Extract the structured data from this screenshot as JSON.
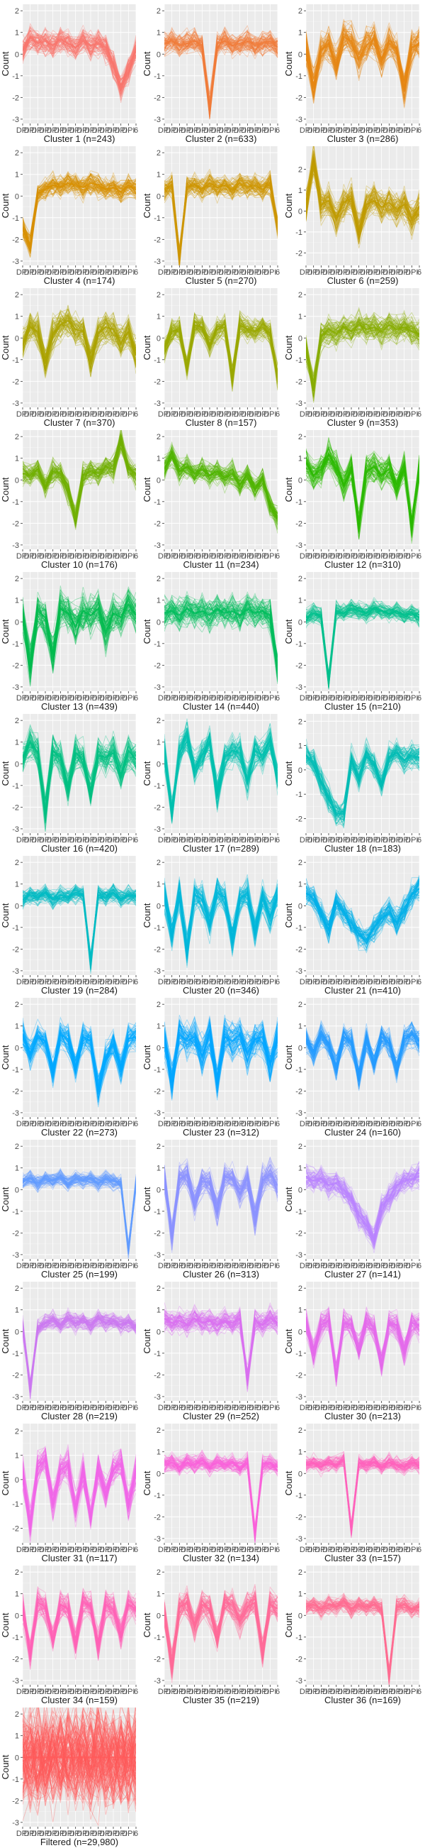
{
  "chart_data": {
    "type": "line",
    "layout": "small multiples, 3 columns",
    "ylabel": "Count",
    "x_tick_labels": [
      "DPI",
      "DPI",
      "DPI",
      "DPI",
      "DPI",
      "DPI",
      "DPI",
      "DPI",
      "DPI",
      "DPI",
      "DPI",
      "DPI",
      "DPI",
      "DPI",
      "DPI",
      "6"
    ],
    "y_ticks": [
      -3,
      -2,
      -1,
      0,
      1,
      2
    ],
    "background": "#ebebeb",
    "grid": true,
    "panels": [
      {
        "title": "Cluster 1 (n=243)",
        "color": "#f8766d",
        "ylim": [
          -3.2,
          2.3
        ],
        "center": [
          0.2,
          0.8,
          0.5,
          0.6,
          0.4,
          0.7,
          0.5,
          0.3,
          0.6,
          0.4,
          0.5,
          0.3,
          -0.5,
          -1.6,
          -0.8,
          0.2
        ],
        "spread": 0.5
      },
      {
        "title": "Cluster 2 (n=633)",
        "color": "#f07c3a",
        "ylim": [
          -3.2,
          2.3
        ],
        "center": [
          0.5,
          0.6,
          0.4,
          0.5,
          0.6,
          0.4,
          -2.5,
          0.5,
          0.6,
          0.4,
          0.5,
          0.6,
          0.4,
          0.5,
          0.6,
          0.3
        ],
        "spread": 0.45
      },
      {
        "title": "Cluster 3 (n=286)",
        "color": "#e68613",
        "ylim": [
          -3.2,
          2.3
        ],
        "center": [
          0.3,
          -1.5,
          0.2,
          0.5,
          -0.5,
          0.8,
          0.6,
          -0.2,
          0.4,
          0.7,
          -0.3,
          0.5,
          0.2,
          -1.6,
          0.3,
          0.5
        ],
        "spread": 0.65
      },
      {
        "title": "Cluster 4 (n=174)",
        "color": "#d89000",
        "ylim": [
          -3.2,
          2.3
        ],
        "center": [
          -1.5,
          -2.3,
          0.1,
          0.3,
          0.5,
          0.4,
          0.6,
          0.5,
          0.4,
          0.6,
          0.5,
          0.3,
          0.4,
          0.2,
          0.5,
          0.3
        ],
        "spread": 0.45
      },
      {
        "title": "Cluster 5 (n=270)",
        "color": "#cd9600",
        "ylim": [
          -3.2,
          2.3
        ],
        "center": [
          0.3,
          0.5,
          -2.8,
          0.4,
          0.5,
          0.3,
          0.6,
          0.4,
          0.5,
          0.3,
          0.6,
          0.4,
          0.5,
          0.3,
          0.6,
          -1.4
        ],
        "spread": 0.45
      },
      {
        "title": "Cluster 6 (n=259)",
        "color": "#bf9b00",
        "ylim": [
          -2.6,
          3.1
        ],
        "center": [
          0.2,
          2.3,
          0.3,
          0.5,
          -0.3,
          0.4,
          0.6,
          -1.0,
          0.3,
          0.5,
          0.2,
          0.4,
          0.1,
          0.3,
          -0.4,
          0.2
        ],
        "spread": 0.65
      },
      {
        "title": "Cluster 7 (n=370)",
        "color": "#aba300",
        "ylim": [
          -3.2,
          2.3
        ],
        "center": [
          -0.3,
          0.5,
          0.3,
          -1.2,
          0.2,
          0.6,
          0.8,
          0.4,
          0.3,
          -1.0,
          0.2,
          0.5,
          0.4,
          -0.2,
          0.3,
          -0.8
        ],
        "spread": 0.6
      },
      {
        "title": "Cluster 8 (n=157)",
        "color": "#9aa800",
        "ylim": [
          -3.2,
          2.3
        ],
        "center": [
          -0.5,
          0.3,
          0.4,
          -1.4,
          0.6,
          0.5,
          -0.3,
          0.4,
          0.5,
          -1.8,
          0.6,
          0.4,
          0.3,
          0.5,
          0.2,
          -1.8
        ],
        "spread": 0.45
      },
      {
        "title": "Cluster 9 (n=353)",
        "color": "#87ac00",
        "ylim": [
          -3.2,
          2.3
        ],
        "center": [
          -0.5,
          -2.3,
          0.1,
          0.4,
          0.2,
          0.5,
          0.3,
          0.6,
          0.4,
          0.5,
          0.3,
          0.6,
          0.4,
          0.5,
          0.3,
          0.2
        ],
        "spread": 0.55
      },
      {
        "title": "Cluster 10 (n=176)",
        "color": "#70b000",
        "ylim": [
          -3.2,
          2.3
        ],
        "center": [
          0.3,
          0.2,
          0.5,
          -0.3,
          0.4,
          0.3,
          -0.5,
          -1.8,
          0.2,
          0.4,
          0.3,
          0.6,
          0.5,
          1.8,
          0.6,
          0.2
        ],
        "spread": 0.45
      },
      {
        "title": "Cluster 11 (n=234)",
        "color": "#4fb400",
        "ylim": [
          -3.2,
          2.3
        ],
        "center": [
          0.5,
          1.2,
          0.4,
          0.6,
          0.3,
          0.5,
          0.2,
          0.4,
          0.1,
          0.3,
          -0.2,
          0.2,
          -0.4,
          0.1,
          -1.2,
          -1.8
        ],
        "spread": 0.45
      },
      {
        "title": "Cluster 12 (n=310)",
        "color": "#2ab900",
        "ylim": [
          -3.2,
          2.3
        ],
        "center": [
          0.8,
          0.2,
          0.5,
          1.2,
          0.6,
          -0.2,
          0.5,
          -2.0,
          0.4,
          0.6,
          0.2,
          0.5,
          -0.3,
          0.6,
          -2.2,
          0.5
        ],
        "spread": 0.6
      },
      {
        "title": "Cluster 13 (n=439)",
        "color": "#00bb4e",
        "ylim": [
          -3.2,
          2.3
        ],
        "center": [
          0.3,
          -2.0,
          0.5,
          0.2,
          -1.5,
          0.6,
          0.4,
          -0.2,
          0.5,
          0.3,
          0.6,
          -0.5,
          0.4,
          0.2,
          0.8,
          0.3
        ],
        "spread": 0.75
      },
      {
        "title": "Cluster 14 (n=440)",
        "color": "#00bd5c",
        "ylim": [
          -3.2,
          2.3
        ],
        "center": [
          0.4,
          0.5,
          0.3,
          0.6,
          0.4,
          0.5,
          0.3,
          0.6,
          0.4,
          0.5,
          0.3,
          0.6,
          0.4,
          0.5,
          0.3,
          -2.2
        ],
        "spread": 0.6
      },
      {
        "title": "Cluster 15 (n=210)",
        "color": "#00c08d",
        "ylim": [
          -3.2,
          2.3
        ],
        "center": [
          0.2,
          0.4,
          0.3,
          -2.7,
          0.5,
          0.4,
          0.6,
          0.5,
          0.4,
          0.6,
          0.5,
          0.4,
          0.5,
          0.3,
          0.4,
          0.2
        ],
        "spread": 0.35
      },
      {
        "title": "Cluster 16 (n=420)",
        "color": "#00bf82",
        "ylim": [
          -3.2,
          2.3
        ],
        "center": [
          0.3,
          1.0,
          0.5,
          -2.3,
          0.6,
          0.3,
          -1.2,
          0.5,
          0.2,
          -1.3,
          0.4,
          0.3,
          0.5,
          -0.5,
          0.6,
          0.2
        ],
        "spread": 0.65
      },
      {
        "title": "Cluster 17 (n=289)",
        "color": "#00c0af",
        "ylim": [
          -3.2,
          2.3
        ],
        "center": [
          0.6,
          -2.2,
          0.5,
          1.3,
          -0.3,
          0.4,
          1.0,
          -1.4,
          0.3,
          0.6,
          0.5,
          -0.8,
          0.6,
          0.4,
          1.1,
          -0.6
        ],
        "spread": 0.6
      },
      {
        "title": "Cluster 18 (n=183)",
        "color": "#00bcb5",
        "ylim": [
          -2.6,
          2.3
        ],
        "center": [
          0.6,
          0.3,
          -0.5,
          -1.2,
          -1.8,
          -1.8,
          0.4,
          -0.3,
          0.6,
          0.2,
          -0.6,
          0.5,
          0.7,
          0.4,
          0.6,
          0.5
        ],
        "spread": 0.45
      },
      {
        "title": "Cluster 19 (n=284)",
        "color": "#00bbc3",
        "ylim": [
          -3.2,
          2.3
        ],
        "center": [
          0.3,
          0.5,
          0.4,
          0.6,
          0.3,
          0.5,
          0.4,
          0.6,
          0.5,
          -2.6,
          0.5,
          0.4,
          0.6,
          0.3,
          0.5,
          0.4
        ],
        "spread": 0.35
      },
      {
        "title": "Cluster 20 (n=346)",
        "color": "#00b7d9",
        "ylim": [
          -3.2,
          2.3
        ],
        "center": [
          0.5,
          -1.4,
          0.6,
          -2.1,
          0.5,
          0.3,
          -0.8,
          0.6,
          0.4,
          -1.5,
          0.3,
          0.6,
          -1.2,
          0.4,
          -0.5,
          0.5
        ],
        "spread": 0.6
      },
      {
        "title": "Cluster 21 (n=410)",
        "color": "#00b0e9",
        "ylim": [
          -3.2,
          2.3
        ],
        "center": [
          0.6,
          0.3,
          -0.4,
          -1.1,
          0.2,
          -0.3,
          -0.8,
          -1.3,
          -1.6,
          -1.0,
          -0.6,
          -0.3,
          -0.8,
          -0.2,
          0.5,
          0.8
        ],
        "spread": 0.5
      },
      {
        "title": "Cluster 22 (n=273)",
        "color": "#00a9ff",
        "ylim": [
          -3.2,
          2.3
        ],
        "center": [
          0.6,
          -0.3,
          0.5,
          0.3,
          -1.1,
          0.6,
          0.4,
          -0.9,
          0.5,
          0.3,
          -1.9,
          -0.5,
          0.2,
          -1.0,
          0.4,
          0.5
        ],
        "spread": 0.55
      },
      {
        "title": "Cluster 23 (n=312)",
        "color": "#03a6ff",
        "ylim": [
          -3.2,
          2.3
        ],
        "center": [
          0.4,
          -1.5,
          0.6,
          0.3,
          0.5,
          -0.4,
          0.6,
          -1.6,
          0.5,
          0.3,
          0.6,
          -0.2,
          0.4,
          0.5,
          -0.8,
          0.4
        ],
        "spread": 0.7
      },
      {
        "title": "Cluster 24 (n=160)",
        "color": "#269cff",
        "ylim": [
          -3.2,
          2.3
        ],
        "center": [
          0.4,
          -0.3,
          0.6,
          0.2,
          -0.9,
          0.5,
          0.3,
          -1.4,
          0.4,
          -0.7,
          0.5,
          0.2,
          -1.0,
          0.4,
          0.6,
          0.3
        ],
        "spread": 0.5
      },
      {
        "title": "Cluster 25 (n=199)",
        "color": "#619cff",
        "ylim": [
          -3.2,
          2.3
        ],
        "center": [
          0.4,
          0.5,
          0.3,
          0.5,
          0.4,
          0.6,
          0.3,
          0.5,
          0.4,
          0.5,
          0.3,
          0.5,
          0.4,
          0.3,
          -2.8,
          0.3
        ],
        "spread": 0.3
      },
      {
        "title": "Cluster 26 (n=313)",
        "color": "#8b93ff",
        "ylim": [
          -3.2,
          2.3
        ],
        "center": [
          0.6,
          -2.1,
          0.5,
          0.7,
          -0.6,
          0.4,
          0.3,
          -1.0,
          0.6,
          0.5,
          -0.2,
          0.5,
          -1.3,
          0.4,
          0.7,
          0.2
        ],
        "spread": 0.55
      },
      {
        "title": "Cluster 27 (n=141)",
        "color": "#b983ff",
        "ylim": [
          -3.2,
          2.3
        ],
        "center": [
          0.6,
          0.4,
          0.5,
          0.2,
          0.3,
          0.0,
          -0.4,
          -1.2,
          -1.6,
          -2.3,
          -0.8,
          -0.4,
          0.2,
          0.4,
          0.5,
          0.6
        ],
        "spread": 0.5
      },
      {
        "title": "Cluster 28 (n=219)",
        "color": "#cc79f1",
        "ylim": [
          -3.2,
          2.3
        ],
        "center": [
          0.2,
          -2.6,
          0.1,
          0.4,
          0.5,
          0.3,
          0.6,
          0.4,
          0.5,
          0.3,
          0.6,
          0.4,
          0.5,
          0.3,
          0.4,
          0.2
        ],
        "spread": 0.35
      },
      {
        "title": "Cluster 29 (n=252)",
        "color": "#d96ff0",
        "ylim": [
          -3.2,
          2.3
        ],
        "center": [
          0.6,
          0.4,
          0.5,
          0.3,
          0.6,
          0.4,
          0.5,
          0.3,
          0.5,
          0.4,
          0.6,
          -2.2,
          0.5,
          0.3,
          0.6,
          0.4
        ],
        "spread": 0.45
      },
      {
        "title": "Cluster 30 (n=213)",
        "color": "#e46bec",
        "ylim": [
          -3.2,
          2.3
        ],
        "center": [
          0.4,
          -1.0,
          0.3,
          0.5,
          -2.0,
          0.4,
          0.3,
          -0.8,
          0.5,
          0.2,
          -1.5,
          0.4,
          0.3,
          -0.9,
          0.4,
          0.3
        ],
        "spread": 0.5
      },
      {
        "title": "Cluster 31 (n=117)",
        "color": "#f166e8",
        "ylim": [
          -2.6,
          2.3
        ],
        "center": [
          0.3,
          -1.8,
          0.5,
          0.8,
          -1.0,
          0.4,
          0.6,
          -1.2,
          0.3,
          -1.6,
          0.5,
          -0.6,
          0.4,
          0.7,
          -1.0,
          0.3
        ],
        "spread": 0.55
      },
      {
        "title": "Cluster 32 (n=134)",
        "color": "#fa62db",
        "ylim": [
          -3.2,
          2.3
        ],
        "center": [
          0.4,
          0.5,
          0.3,
          0.5,
          0.4,
          0.6,
          0.3,
          0.5,
          0.4,
          0.5,
          0.3,
          0.5,
          -2.8,
          0.4,
          0.5,
          0.3
        ],
        "spread": 0.35
      },
      {
        "title": "Cluster 33 (n=157)",
        "color": "#ff62bc",
        "ylim": [
          -3.2,
          2.3
        ],
        "center": [
          0.4,
          0.5,
          0.3,
          0.5,
          0.4,
          0.6,
          -2.6,
          0.5,
          0.4,
          0.5,
          0.3,
          0.5,
          0.4,
          0.3,
          0.5,
          0.4
        ],
        "spread": 0.3
      },
      {
        "title": "Cluster 34 (n=159)",
        "color": "#ff63b6",
        "ylim": [
          -3.2,
          2.3
        ],
        "center": [
          0.3,
          -1.8,
          0.6,
          0.4,
          -1.1,
          0.5,
          0.3,
          -1.3,
          0.6,
          0.4,
          -1.4,
          0.5,
          0.3,
          -0.9,
          0.5,
          0.3
        ],
        "spread": 0.55
      },
      {
        "title": "Cluster 35 (n=219)",
        "color": "#ff6a98",
        "ylim": [
          -3.2,
          2.3
        ],
        "center": [
          0.1,
          -2.3,
          0.4,
          0.6,
          -0.5,
          0.5,
          0.3,
          -1.0,
          0.6,
          0.5,
          -0.3,
          0.4,
          0.6,
          -1.8,
          0.5,
          0.3
        ],
        "spread": 0.55
      },
      {
        "title": "Cluster 36 (n=169)",
        "color": "#ff6c91",
        "ylim": [
          -3.2,
          2.3
        ],
        "center": [
          0.4,
          0.5,
          0.3,
          0.5,
          0.4,
          0.6,
          0.3,
          0.5,
          0.4,
          0.5,
          0.3,
          -2.8,
          0.4,
          0.5,
          0.3,
          0.4
        ],
        "spread": 0.35
      },
      {
        "title": "Filtered (n=29,980)",
        "color": "#ff5a5a",
        "ylim": [
          -3.2,
          2.3
        ],
        "center": [
          0.0,
          0.0,
          0.0,
          0.0,
          0.0,
          0.0,
          0.0,
          0.0,
          0.0,
          0.0,
          0.0,
          0.0,
          0.0,
          0.0,
          0.0,
          0.0
        ],
        "spread": 1.9
      }
    ]
  }
}
